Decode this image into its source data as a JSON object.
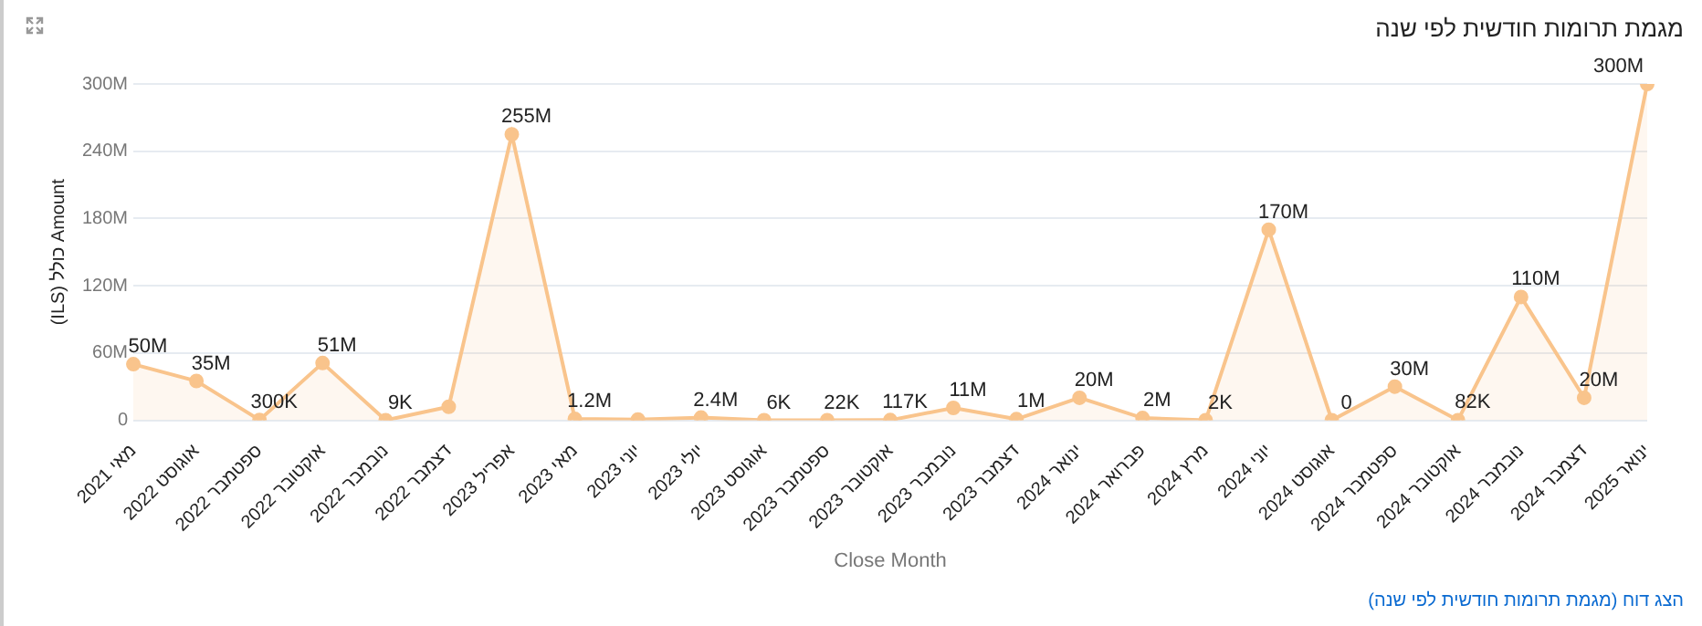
{
  "chart_data": {
    "type": "area",
    "title": "מגמת תרומות חודשית לפי שנה",
    "xlabel": "Close Month",
    "ylabel": "(ILS) כולל Amount",
    "annotations": [
      "הצג דוח (מגמת תרומות חודשית לפי שנה)"
    ],
    "categories": [
      "מאי 2021",
      "אוגוסט 2022",
      "ספטמבר 2022",
      "אוקטובר 2022",
      "נובמבר 2022",
      "דצמבר 2022",
      "אפריל 2023",
      "מאי 2023",
      "יוני 2023",
      "יולי 2023",
      "אוגוסט 2023",
      "ספטמבר 2023",
      "אוקטובר 2023",
      "נובמבר 2023",
      "דצמבר 2023",
      "ינואר 2024",
      "פברואר 2024",
      "מרץ 2024",
      "יוני 2024",
      "אוגוסט 2024",
      "ספטמבר 2024",
      "אוקטובר 2024",
      "נובמבר 2024",
      "דצמבר 2024",
      "ינואר 2025"
    ],
    "series": [
      {
        "color": "#f9c48c",
        "values": [
          50000000,
          35000000,
          300000,
          51000000,
          9000,
          12000000,
          255000000,
          1200000,
          600000,
          2400000,
          6000,
          22000,
          117000,
          11000000,
          1000000,
          20000000,
          2000000,
          2000,
          170000000,
          0,
          30000000,
          82000,
          110000000,
          20000000,
          300000000
        ],
        "value_labels": [
          "50M",
          "35M",
          "300K",
          "51M",
          "9K",
          null,
          "255M",
          "1.2M",
          null,
          "2.4M",
          "6K",
          "22K",
          "117K",
          "11M",
          "1M",
          "20M",
          "2M",
          "2K",
          "170M",
          "0",
          "30M",
          "82K",
          "110M",
          "20M",
          "300M"
        ]
      }
    ],
    "ylim": [
      0,
      300000000
    ],
    "yticks": [
      0,
      {
        "value": 60000000,
        "label": "60M"
      },
      {
        "value": 120000000,
        "label": "120M"
      },
      {
        "value": 180000000,
        "label": "180M"
      },
      {
        "value": 240000000,
        "label": "240M"
      },
      {
        "value": 300000000,
        "label": "300M"
      }
    ],
    "grid": "y",
    "legend": false,
    "marker": "circle",
    "line_style": "solid"
  }
}
